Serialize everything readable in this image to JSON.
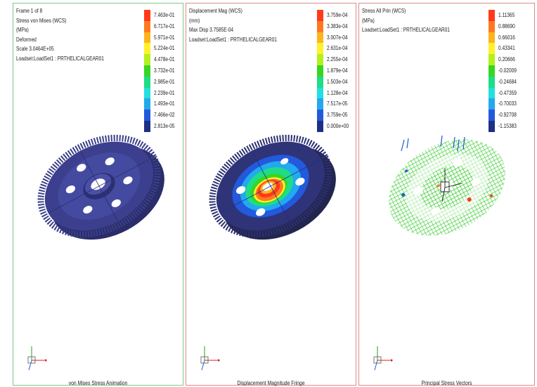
{
  "panels": [
    {
      "info": [
        "Frame 1 of 8",
        "Stress von Mises (WCS)",
        "(MPa)",
        "Deformed",
        "Scale  3.0464E+05",
        "Loadset:LoadSet1 :  PRTHELICALGEAR01"
      ],
      "legend": [
        "7.463e-01",
        "6.717e-01",
        "5.971e-01",
        "5.224e-01",
        "4.478e-01",
        "3.732e-01",
        "2.985e-01",
        "2.239e-01",
        "1.493e-01",
        "7.466e-02",
        "2.813e-05"
      ],
      "colors": [
        "#ff3a1a",
        "#ff7a1f",
        "#ffb31f",
        "#fff22a",
        "#b5ef1e",
        "#37d622",
        "#1fdc86",
        "#22e0dd",
        "#22a9ee",
        "#2259dd",
        "#1f2f86"
      ],
      "caption": "von Mises Stress Animation",
      "model_icon": "gear-model-icon"
    },
    {
      "info": [
        "Displacement Mag (WCS)",
        "(mm)",
        "Max Disp  3.7585E-04",
        "Loadset:LoadSet1 :  PRTHELICALGEAR01"
      ],
      "legend": [
        "3.759e-04",
        "3.383e-04",
        "3.007e-04",
        "2.631e-04",
        "2.255e-04",
        "1.879e-04",
        "1.503e-04",
        "1.128e-04",
        "7.517e-05",
        "3.759e-05",
        "0.000e+00"
      ],
      "colors": [
        "#ff3a1a",
        "#ff7a1f",
        "#ffb31f",
        "#fff22a",
        "#b5ef1e",
        "#37d622",
        "#1fdc86",
        "#22e0dd",
        "#22a9ee",
        "#2259dd",
        "#1f2f86"
      ],
      "caption": "Displacement Magnitude Fringe",
      "model_icon": "gear-displacement-icon"
    },
    {
      "info": [
        "Stress All Prin (WCS)",
        "(MPa)",
        "Loadset:LoadSet1 :  PRTHELICALGEAR01"
      ],
      "legend": [
        "1.11365",
        "0.88690",
        "0.66016",
        "0.43341",
        "0.20666",
        "-0.02009",
        "-0.24684",
        "-0.47359",
        "-0.70033",
        "-0.92708",
        "-1.15383"
      ],
      "colors": [
        "#ff3a1a",
        "#ff7a1f",
        "#ffb31f",
        "#fff22a",
        "#b5ef1e",
        "#37d622",
        "#1fdc86",
        "#22e0dd",
        "#22a9ee",
        "#2259dd",
        "#1f2f86"
      ],
      "caption": "Principal Stress Vectors",
      "model_icon": "stress-vectors-icon"
    }
  ],
  "triad_icon": "coordinate-triad-icon"
}
